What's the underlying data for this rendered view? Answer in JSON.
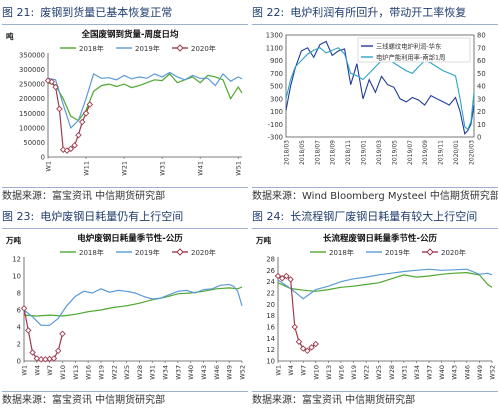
{
  "panels": [
    {
      "figure": "图 21:",
      "caption": "废钢到货量已基本恢复正常",
      "source": "数据来源：富宝资讯  中信期货研究部",
      "chart_data": {
        "type": "line",
        "title": "全国废钢到货量-周度日均",
        "unit": "吨",
        "x_tick_labels": [
          "W1",
          "W11",
          "W21",
          "W31",
          "W41",
          "W51"
        ],
        "x_tick_positions": [
          1,
          11,
          21,
          31,
          41,
          51
        ],
        "xlim": [
          1,
          52
        ],
        "ylim": [
          0,
          350000
        ],
        "y_ticks": [
          0,
          50000,
          100000,
          150000,
          200000,
          250000,
          300000,
          350000
        ],
        "legend": "top",
        "series": [
          {
            "name": "2018年",
            "color": "#4ea72e",
            "marker": "none",
            "x": [
              1,
              3,
              5,
              7,
              9,
              11,
              13,
              15,
              17,
              19,
              21,
              23,
              25,
              27,
              29,
              31,
              33,
              35,
              37,
              39,
              41,
              43,
              45,
              47,
              49,
              51,
              52
            ],
            "values": [
              255000,
              245000,
              200000,
              140000,
              125000,
              160000,
              225000,
              245000,
              250000,
              242000,
              250000,
              238000,
              245000,
              255000,
              265000,
              262000,
              285000,
              255000,
              265000,
              275000,
              255000,
              280000,
              275000,
              265000,
              200000,
              240000,
              220000
            ]
          },
          {
            "name": "2019年",
            "color": "#5b9bd5",
            "marker": "none",
            "x": [
              1,
              3,
              5,
              7,
              9,
              11,
              13,
              15,
              17,
              19,
              21,
              23,
              25,
              27,
              29,
              31,
              33,
              35,
              37,
              39,
              41,
              43,
              45,
              47,
              49,
              51,
              52
            ],
            "values": [
              270000,
              265000,
              180000,
              100000,
              125000,
              200000,
              285000,
              270000,
              272000,
              265000,
              280000,
              268000,
              275000,
              270000,
              285000,
              275000,
              290000,
              275000,
              265000,
              280000,
              270000,
              270000,
              245000,
              285000,
              260000,
              275000,
              268000
            ]
          },
          {
            "name": "2020年",
            "color": "#9e3a4e",
            "marker": "diamond",
            "x": [
              1,
              2,
              3,
              4,
              5,
              6,
              7,
              8,
              9,
              10,
              11,
              12
            ],
            "values": [
              262000,
              258000,
              240000,
              165000,
              25000,
              22000,
              28000,
              40000,
              75000,
              120000,
              150000,
              180000
            ]
          }
        ]
      }
    },
    {
      "figure": "图 22:",
      "caption": "电炉利润有所回升，带动开工率恢复",
      "source": "数据来源：Wind Bloomberg Mysteel  中信期货研究部",
      "chart_data": {
        "type": "line",
        "title": "",
        "x_tick_labels": [
          "2018/03",
          "2018/05",
          "2018/07",
          "2018/09",
          "2018/11",
          "2019/01",
          "2019/03",
          "2019/05",
          "2019/07",
          "2019/09",
          "2019/11",
          "2020/01",
          "2020/03"
        ],
        "xlim": [
          0,
          12.2
        ],
        "ylim": [
          -300,
          1300
        ],
        "y_ticks": [
          -300,
          -100,
          100,
          300,
          500,
          700,
          900,
          1100,
          1300
        ],
        "y2lim": [
          0,
          80
        ],
        "y2_ticks": [
          0,
          10,
          20,
          30,
          40,
          50,
          60,
          70,
          80
        ],
        "legend": "top-right",
        "series": [
          {
            "name": "三线螺纹电炉利润-华东",
            "color": "#1f3c99",
            "axis": "left",
            "x": [
              0,
              0.3,
              0.6,
              1,
              1.4,
              1.8,
              2.2,
              2.6,
              3,
              3.4,
              3.8,
              4.2,
              4.6,
              5,
              5.4,
              5.8,
              6.2,
              6.6,
              7,
              7.4,
              7.8,
              8.2,
              8.6,
              9,
              9.4,
              9.8,
              10.2,
              10.6,
              11,
              11.3,
              11.6,
              11.8,
              12,
              12.2
            ],
            "values": [
              120,
              500,
              780,
              1050,
              1100,
              950,
              1150,
              1200,
              980,
              1050,
              1080,
              520,
              850,
              300,
              600,
              400,
              650,
              520,
              480,
              300,
              250,
              320,
              280,
              200,
              350,
              300,
              250,
              200,
              320,
              100,
              -250,
              -200,
              -100,
              200
            ]
          },
          {
            "name": "电炉产能利用率-南部1周",
            "color": "#2ea3c9",
            "axis": "right",
            "x": [
              0,
              0.3,
              0.6,
              1,
              1.4,
              1.8,
              2.2,
              2.6,
              3,
              3.4,
              3.8,
              4.2,
              4.6,
              5,
              5.4,
              5.8,
              6.2,
              6.6,
              7,
              7.4,
              7.8,
              8.2,
              8.6,
              9,
              9.4,
              9.8,
              10.2,
              10.6,
              11,
              11.3,
              11.6,
              11.8,
              12,
              12.2
            ],
            "values": [
              30,
              45,
              55,
              60,
              65,
              68,
              70,
              66,
              68,
              70,
              65,
              50,
              48,
              45,
              50,
              55,
              60,
              62,
              58,
              55,
              52,
              50,
              55,
              60,
              58,
              55,
              52,
              50,
              48,
              30,
              8,
              6,
              12,
              35
            ]
          }
        ]
      }
    },
    {
      "figure": "图 23:",
      "caption": "电炉废钢日耗量仍有上行空间",
      "source": "数据来源：富宝资讯  中信期货研究部",
      "chart_data": {
        "type": "line",
        "title": "电炉废钢日耗量季节性-公历",
        "unit": "万吨",
        "x_tick_labels": [
          "W1",
          "W4",
          "W7",
          "W10",
          "W13",
          "W16",
          "W19",
          "W22",
          "W25",
          "W28",
          "W31",
          "W34",
          "W37",
          "W40",
          "W43",
          "W46",
          "W49",
          "W52"
        ],
        "x_tick_positions": [
          1,
          4,
          7,
          10,
          13,
          16,
          19,
          22,
          25,
          28,
          31,
          34,
          37,
          40,
          43,
          46,
          49,
          52
        ],
        "xlim": [
          1,
          52
        ],
        "ylim": [
          0,
          12
        ],
        "y_ticks": [
          0,
          2,
          4,
          6,
          8,
          10,
          12
        ],
        "legend": "top",
        "series": [
          {
            "name": "2018年",
            "color": "#4ea72e",
            "marker": "none",
            "x": [
              1,
              4,
              7,
              10,
              13,
              16,
              19,
              22,
              25,
              28,
              31,
              34,
              37,
              40,
              43,
              46,
              49,
              51,
              52
            ],
            "values": [
              5.4,
              5.3,
              5.4,
              5.3,
              5.5,
              5.8,
              6.0,
              6.3,
              6.5,
              6.8,
              7.2,
              7.5,
              7.9,
              8.0,
              8.2,
              8.5,
              8.6,
              8.5,
              8.7
            ]
          },
          {
            "name": "2019年",
            "color": "#5b9bd5",
            "marker": "none",
            "x": [
              1,
              3,
              5,
              7,
              9,
              11,
              13,
              15,
              17,
              19,
              21,
              23,
              25,
              27,
              29,
              31,
              33,
              35,
              37,
              39,
              41,
              43,
              45,
              47,
              49,
              50,
              51,
              52
            ],
            "values": [
              6.0,
              5.2,
              4.2,
              4.2,
              5.0,
              6.5,
              7.6,
              8.2,
              8.0,
              8.5,
              8.1,
              8.3,
              8.2,
              8.0,
              7.6,
              7.3,
              7.4,
              7.8,
              8.2,
              8.3,
              8.0,
              8.4,
              8.5,
              8.9,
              9.0,
              8.8,
              8.2,
              6.5
            ]
          },
          {
            "name": "2020年",
            "color": "#9e3a4e",
            "marker": "diamond",
            "x": [
              1,
              2,
              3,
              4,
              5,
              6,
              7,
              8,
              9,
              10
            ],
            "values": [
              6.2,
              3.6,
              1.0,
              0.3,
              0.2,
              0.2,
              0.25,
              0.3,
              1.2,
              3.2
            ]
          }
        ]
      }
    },
    {
      "figure": "图 24:",
      "caption": "长流程钢厂废钢日耗量有较大上行空间",
      "source": "数据来源：富宝资讯  中信期货研究部",
      "chart_data": {
        "type": "line",
        "title": "长流程废钢日耗量季节性-公历",
        "unit": "万吨",
        "x_tick_labels": [
          "W1",
          "W4",
          "W7",
          "W10",
          "W13",
          "W16",
          "W19",
          "W22",
          "W25",
          "W28",
          "W31",
          "W34",
          "W37",
          "W40",
          "W43",
          "W46",
          "W49",
          "W52"
        ],
        "x_tick_positions": [
          1,
          4,
          7,
          10,
          13,
          16,
          19,
          22,
          25,
          28,
          31,
          34,
          37,
          40,
          43,
          46,
          49,
          52
        ],
        "xlim": [
          1,
          52
        ],
        "ylim": [
          10,
          28
        ],
        "y_ticks": [
          10,
          12,
          14,
          16,
          18,
          20,
          22,
          24,
          26,
          28
        ],
        "legend": "top",
        "series": [
          {
            "name": "2018年",
            "color": "#4ea72e",
            "marker": "none",
            "x": [
              1,
              4,
              7,
              10,
              13,
              16,
              19,
              22,
              25,
              28,
              31,
              34,
              37,
              40,
              43,
              46,
              49,
              51,
              52
            ],
            "values": [
              23.8,
              22.8,
              22.5,
              22.3,
              22.6,
              23.0,
              23.2,
              23.5,
              23.8,
              24.5,
              25.2,
              24.8,
              25.0,
              25.3,
              25.5,
              25.6,
              25.2,
              23.5,
              23.0
            ]
          },
          {
            "name": "2019年",
            "color": "#5b9bd5",
            "marker": "none",
            "x": [
              1,
              4,
              7,
              10,
              13,
              16,
              19,
              22,
              25,
              28,
              31,
              34,
              37,
              40,
              43,
              46,
              49,
              51,
              52
            ],
            "values": [
              24.3,
              22.8,
              21.0,
              22.6,
              23.2,
              24.0,
              24.5,
              24.8,
              25.2,
              25.5,
              25.8,
              26.0,
              26.2,
              26.0,
              26.1,
              26.2,
              25.3,
              25.5,
              25.2
            ]
          },
          {
            "name": "2020年",
            "color": "#9e3a4e",
            "marker": "diamond",
            "x": [
              1,
              2,
              3,
              4,
              5,
              6,
              7,
              8,
              9,
              10
            ],
            "values": [
              25.0,
              24.6,
              25.0,
              24.4,
              16.0,
              13.4,
              12.2,
              11.8,
              12.4,
              13.0
            ]
          }
        ]
      }
    }
  ]
}
